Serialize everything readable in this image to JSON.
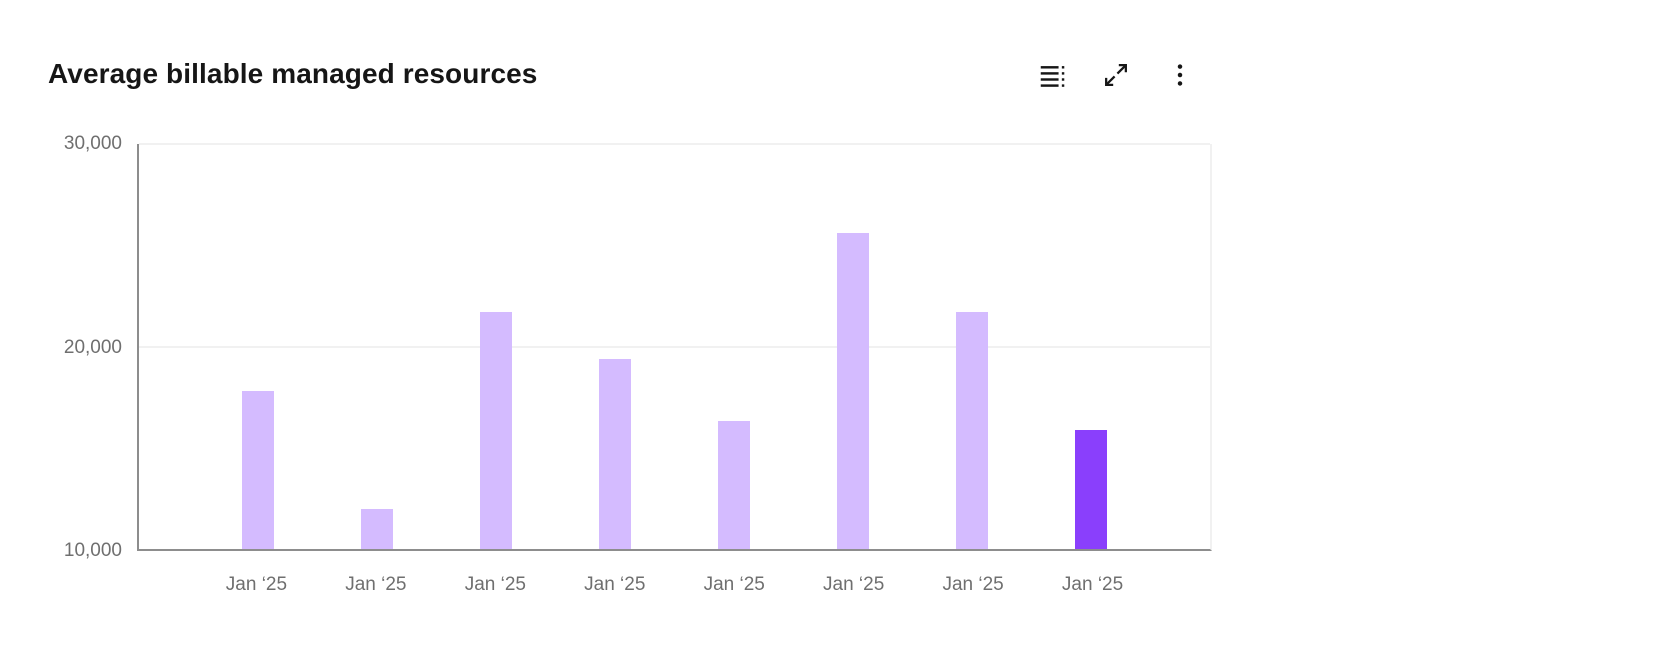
{
  "header": {
    "title": "Average billable managed resources",
    "toolbar": [
      {
        "icon": "data-table-icon",
        "label": "Show data table"
      },
      {
        "icon": "expand-icon",
        "label": "Expand"
      },
      {
        "icon": "kebab-icon",
        "label": "More options"
      }
    ]
  },
  "chart_data": {
    "type": "bar",
    "title": "Average billable managed resources",
    "categories": [
      "Jan ‘25",
      "Jan ‘25",
      "Jan ‘25",
      "Jan ‘25",
      "Jan ‘25",
      "Jan ‘25",
      "Jan ‘25",
      "Jan ‘25"
    ],
    "values": [
      17800,
      12000,
      21700,
      19400,
      16300,
      25600,
      21700,
      15900
    ],
    "xlabel": "",
    "ylabel": "",
    "ylim": [
      10000,
      30000
    ],
    "yticks": [
      10000,
      20000,
      30000
    ],
    "ytick_labels": [
      "10,000",
      "20,000",
      "30,000"
    ],
    "grid": true,
    "legend": false,
    "bar_color": "#d4bbff",
    "highlight_color": "#8a3ffc",
    "highlight_index": 7,
    "axis_color": "#8d8d8d",
    "gridline_color": "#f1f1f1",
    "label_color": "#6f6f6f",
    "title_color": "#161616"
  }
}
